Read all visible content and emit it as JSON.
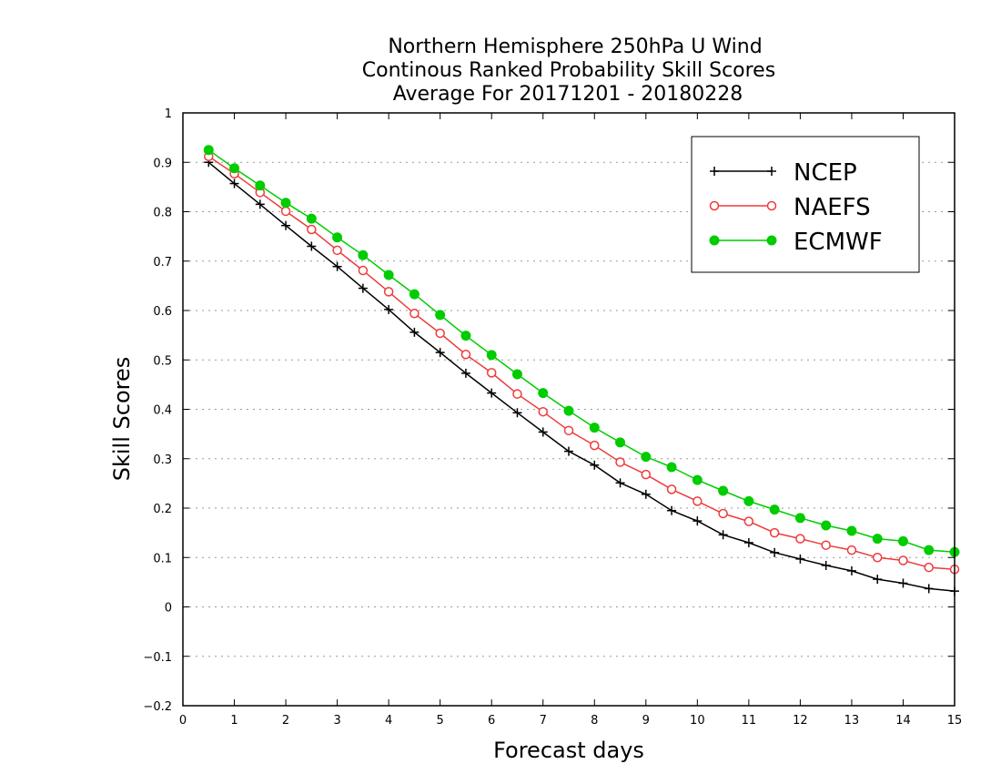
{
  "chart_data": {
    "type": "line",
    "title_lines": [
      "Northern Hemisphere 250hPa U Wind",
      "Continous Ranked Probability Skill Scores",
      "Average For 20171201 - 20180228"
    ],
    "xlabel": "Forecast days",
    "ylabel": "Skill Scores",
    "xlim": [
      0,
      15
    ],
    "ylim": [
      -0.2,
      1
    ],
    "xticks": [
      "0",
      "1",
      "2",
      "3",
      "4",
      "5",
      "6",
      "7",
      "8",
      "9",
      "10",
      "11",
      "12",
      "13",
      "14",
      "15"
    ],
    "yticks": [
      "1",
      "0.9",
      "0.8",
      "0.7",
      "0.6",
      "0.5",
      "0.4",
      "0.3",
      "0.2",
      "0.1",
      "0",
      "−0.1",
      "−0.2"
    ],
    "grid": "horizontal-dotted",
    "legend_position": "top-right",
    "x": [
      0.5,
      1,
      1.5,
      2,
      2.5,
      3,
      3.5,
      4,
      4.5,
      5,
      5.5,
      6,
      6.5,
      7,
      7.5,
      8,
      8.5,
      9,
      9.5,
      10,
      10.5,
      11,
      11.5,
      12,
      12.5,
      13,
      13.5,
      14,
      14.5,
      15
    ],
    "series": [
      {
        "name": "NCEP",
        "color": "#000000",
        "marker": "plus",
        "values": [
          0.9,
          0.857,
          0.815,
          0.772,
          0.73,
          0.689,
          0.645,
          0.602,
          0.556,
          0.515,
          0.473,
          0.433,
          0.393,
          0.354,
          0.315,
          0.287,
          0.251,
          0.228,
          0.195,
          0.174,
          0.146,
          0.13,
          0.11,
          0.097,
          0.084,
          0.073,
          0.056,
          0.048,
          0.037,
          0.032
        ]
      },
      {
        "name": "NAEFS",
        "color": "#ee3b3b",
        "marker": "open-circle",
        "values": [
          0.912,
          0.877,
          0.839,
          0.801,
          0.764,
          0.722,
          0.681,
          0.638,
          0.594,
          0.554,
          0.511,
          0.474,
          0.431,
          0.395,
          0.357,
          0.327,
          0.293,
          0.268,
          0.238,
          0.214,
          0.189,
          0.173,
          0.15,
          0.138,
          0.125,
          0.115,
          0.1,
          0.094,
          0.08,
          0.076
        ]
      },
      {
        "name": "ECMWF",
        "color": "#00cc00",
        "marker": "filled-circle",
        "values": [
          0.925,
          0.888,
          0.853,
          0.818,
          0.786,
          0.748,
          0.712,
          0.672,
          0.633,
          0.591,
          0.549,
          0.51,
          0.471,
          0.433,
          0.397,
          0.363,
          0.333,
          0.304,
          0.283,
          0.257,
          0.235,
          0.214,
          0.197,
          0.18,
          0.165,
          0.154,
          0.138,
          0.133,
          0.115,
          0.111
        ]
      }
    ]
  }
}
